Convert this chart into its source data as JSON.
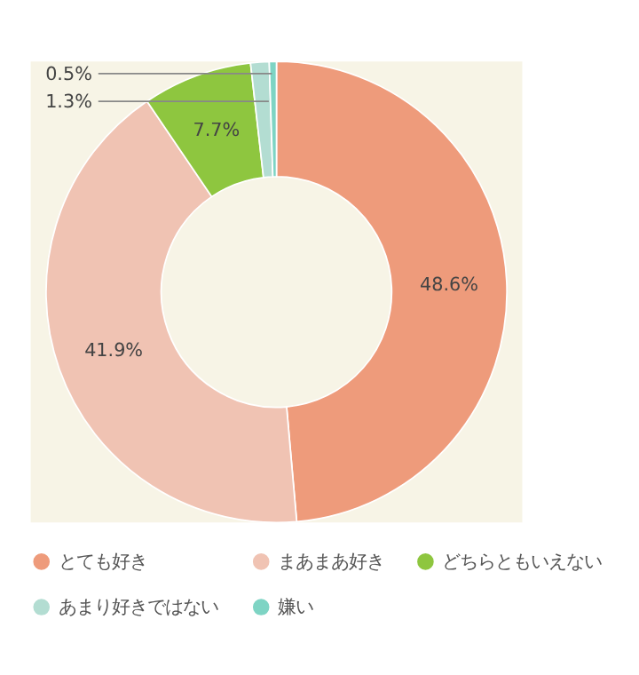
{
  "chart_data": {
    "type": "donut",
    "categories": [
      "とても好き",
      "まあまあ好き",
      "どちらともいえない",
      "あまり好きではない",
      "嫌い"
    ],
    "values": [
      48.6,
      41.9,
      7.7,
      1.3,
      0.5
    ],
    "colors": [
      "#ee9b7b",
      "#f0c3b3",
      "#8ec63f",
      "#b3ddd2",
      "#7ed4c4"
    ],
    "value_labels": [
      "48.6%",
      "41.9%",
      "7.7%",
      "1.3%",
      "0.5%"
    ],
    "legend": "bottom"
  }
}
